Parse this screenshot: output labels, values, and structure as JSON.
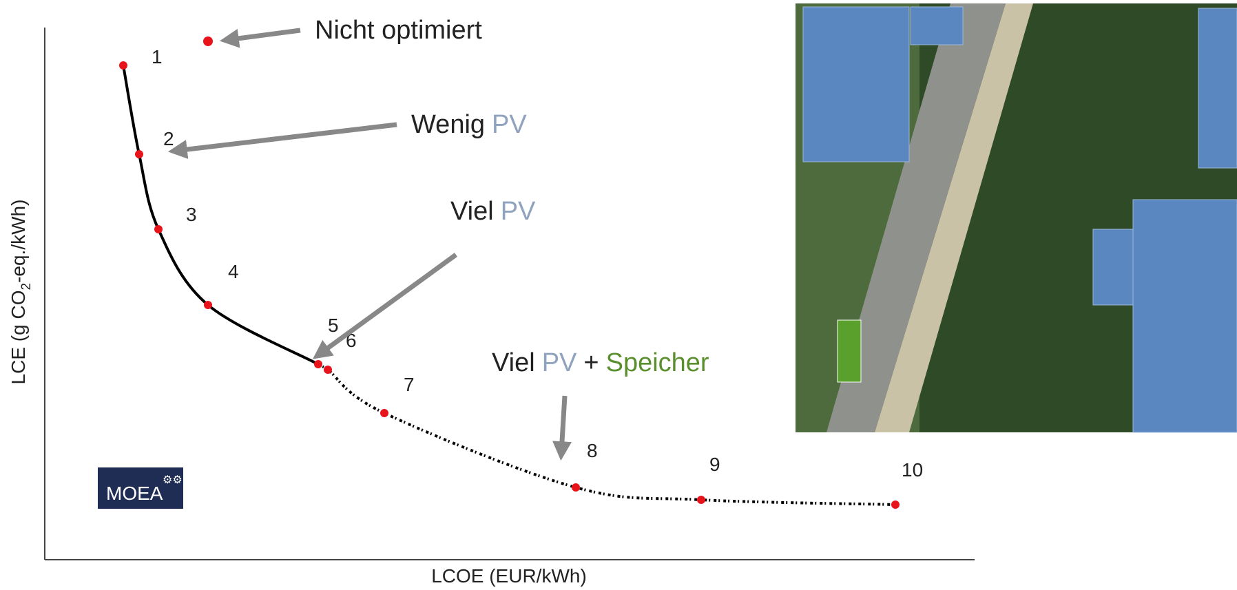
{
  "axes": {
    "x_label": "LCOE (EUR/kWh)",
    "y_label": [
      "LCE (g CO",
      "2",
      "-eq./kWh)"
    ]
  },
  "points": [
    "1",
    "2",
    "3",
    "4",
    "5",
    "6",
    "7",
    "8",
    "9",
    "10"
  ],
  "annotations": {
    "not_optimized": "Nicht optimiert",
    "little_pv": [
      "Wenig",
      "PV"
    ],
    "much_pv": [
      "Viel",
      "PV"
    ],
    "pv_storage": [
      "Viel",
      "PV",
      "+",
      "Speicher"
    ]
  },
  "badge": "MOEA"
}
